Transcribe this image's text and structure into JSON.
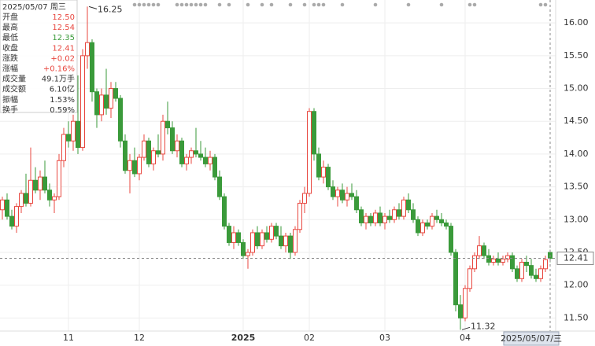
{
  "chart_data": {
    "type": "candlestick",
    "categories": [
      null,
      null,
      null,
      null,
      null,
      null,
      null,
      null,
      null,
      null,
      null,
      null,
      null,
      null,
      "11",
      null,
      null,
      null,
      null,
      null,
      null,
      null,
      null,
      null,
      null,
      null,
      null,
      null,
      null,
      "12",
      null,
      null,
      null,
      null,
      null,
      null,
      null,
      null,
      null,
      null,
      null,
      null,
      null,
      null,
      null,
      null,
      null,
      null,
      null,
      null,
      null,
      "2025",
      null,
      null,
      null,
      null,
      null,
      null,
      null,
      null,
      null,
      null,
      null,
      null,
      null,
      "02",
      null,
      null,
      null,
      null,
      null,
      null,
      null,
      null,
      null,
      null,
      null,
      null,
      null,
      null,
      null,
      "03",
      null,
      null,
      null,
      null,
      null,
      null,
      null,
      null,
      null,
      null,
      null,
      null,
      null,
      null,
      null,
      null,
      "04",
      null,
      null,
      null,
      null,
      null,
      null,
      null,
      null,
      null,
      null,
      null,
      null,
      null,
      null,
      null,
      null,
      null,
      null
    ],
    "ohlc": [
      [
        13.15,
        13.35,
        13.0,
        13.3
      ],
      [
        13.3,
        13.4,
        13.0,
        13.05
      ],
      [
        13.05,
        13.15,
        12.85,
        12.9
      ],
      [
        12.9,
        13.25,
        12.8,
        13.2
      ],
      [
        13.2,
        13.45,
        13.1,
        13.4
      ],
      [
        13.4,
        13.7,
        13.2,
        13.25
      ],
      [
        13.25,
        14.1,
        13.2,
        13.6
      ],
      [
        13.6,
        13.8,
        13.4,
        13.45
      ],
      [
        13.45,
        13.75,
        13.3,
        13.65
      ],
      [
        13.65,
        13.9,
        13.4,
        13.45
      ],
      [
        13.45,
        13.55,
        13.2,
        13.3
      ],
      [
        13.3,
        13.4,
        13.1,
        13.35
      ],
      [
        13.35,
        14.0,
        13.3,
        13.9
      ],
      [
        13.9,
        14.4,
        13.8,
        14.3
      ],
      [
        14.3,
        14.5,
        14.1,
        14.2
      ],
      [
        14.2,
        14.6,
        14.05,
        14.5
      ],
      [
        14.5,
        15.2,
        14.0,
        14.1
      ],
      [
        14.1,
        15.6,
        14.05,
        15.5
      ],
      [
        15.5,
        16.25,
        15.3,
        15.7
      ],
      [
        15.7,
        15.75,
        14.8,
        14.95
      ],
      [
        14.95,
        15.0,
        14.4,
        14.6
      ],
      [
        14.6,
        15.0,
        14.5,
        14.9
      ],
      [
        14.9,
        15.3,
        14.6,
        14.7
      ],
      [
        14.7,
        15.1,
        14.55,
        15.0
      ],
      [
        15.0,
        15.1,
        14.8,
        14.85
      ],
      [
        14.85,
        14.9,
        14.1,
        14.2
      ],
      [
        14.2,
        14.3,
        13.7,
        13.75
      ],
      [
        13.75,
        14.0,
        13.4,
        13.9
      ],
      [
        13.9,
        14.1,
        13.65,
        13.7
      ],
      [
        13.7,
        14.0,
        13.6,
        13.95
      ],
      [
        13.95,
        14.3,
        13.9,
        14.2
      ],
      [
        14.2,
        14.25,
        13.8,
        13.85
      ],
      [
        13.85,
        14.1,
        13.75,
        14.05
      ],
      [
        14.05,
        14.3,
        13.95,
        14.0
      ],
      [
        14.0,
        14.6,
        13.9,
        14.5
      ],
      [
        14.5,
        14.8,
        14.3,
        14.4
      ],
      [
        14.4,
        14.5,
        14.0,
        14.05
      ],
      [
        14.05,
        14.3,
        13.95,
        14.2
      ],
      [
        14.2,
        14.25,
        13.8,
        13.85
      ],
      [
        13.85,
        14.0,
        13.75,
        13.95
      ],
      [
        13.95,
        14.1,
        13.85,
        14.05
      ],
      [
        14.05,
        14.4,
        13.95,
        14.0
      ],
      [
        14.0,
        14.2,
        13.9,
        13.95
      ],
      [
        13.95,
        14.1,
        13.8,
        13.85
      ],
      [
        13.85,
        14.05,
        13.75,
        13.95
      ],
      [
        13.95,
        14.0,
        13.6,
        13.65
      ],
      [
        13.65,
        13.75,
        13.3,
        13.35
      ],
      [
        13.35,
        13.4,
        12.85,
        12.9
      ],
      [
        12.9,
        12.95,
        12.6,
        12.65
      ],
      [
        12.65,
        12.9,
        12.55,
        12.8
      ],
      [
        12.8,
        12.85,
        12.6,
        12.65
      ],
      [
        12.65,
        12.7,
        12.4,
        12.45
      ],
      [
        12.45,
        12.55,
        12.25,
        12.5
      ],
      [
        12.5,
        12.85,
        12.45,
        12.8
      ],
      [
        12.8,
        12.9,
        12.55,
        12.6
      ],
      [
        12.6,
        12.85,
        12.55,
        12.8
      ],
      [
        12.8,
        12.9,
        12.65,
        12.7
      ],
      [
        12.7,
        12.95,
        12.65,
        12.9
      ],
      [
        12.9,
        12.95,
        12.7,
        12.75
      ],
      [
        12.75,
        12.9,
        12.55,
        12.6
      ],
      [
        12.6,
        12.8,
        12.5,
        12.75
      ],
      [
        12.75,
        12.8,
        12.4,
        12.5
      ],
      [
        12.5,
        12.9,
        12.45,
        12.85
      ],
      [
        12.85,
        13.3,
        12.8,
        13.25
      ],
      [
        13.25,
        13.5,
        13.1,
        13.4
      ],
      [
        13.4,
        14.7,
        13.35,
        14.65
      ],
      [
        14.65,
        14.7,
        13.9,
        14.0
      ],
      [
        14.0,
        14.1,
        13.6,
        13.65
      ],
      [
        13.65,
        13.9,
        13.55,
        13.8
      ],
      [
        13.8,
        13.85,
        13.45,
        13.5
      ],
      [
        13.5,
        13.6,
        13.3,
        13.35
      ],
      [
        13.35,
        13.5,
        13.2,
        13.45
      ],
      [
        13.45,
        13.55,
        13.25,
        13.3
      ],
      [
        13.3,
        13.5,
        13.2,
        13.4
      ],
      [
        13.4,
        13.55,
        13.3,
        13.35
      ],
      [
        13.35,
        13.45,
        13.1,
        13.15
      ],
      [
        13.15,
        13.2,
        12.9,
        12.95
      ],
      [
        12.95,
        13.1,
        12.85,
        13.05
      ],
      [
        13.05,
        13.1,
        12.9,
        12.95
      ],
      [
        12.95,
        13.15,
        12.9,
        13.1
      ],
      [
        13.1,
        13.2,
        12.9,
        12.95
      ],
      [
        12.95,
        13.1,
        12.85,
        13.05
      ],
      [
        13.05,
        13.15,
        12.95,
        13.0
      ],
      [
        13.0,
        13.2,
        12.95,
        13.15
      ],
      [
        13.15,
        13.25,
        13.0,
        13.05
      ],
      [
        13.05,
        13.35,
        13.0,
        13.3
      ],
      [
        13.3,
        13.4,
        13.1,
        13.15
      ],
      [
        13.15,
        13.25,
        12.95,
        13.0
      ],
      [
        13.0,
        13.05,
        12.75,
        12.8
      ],
      [
        12.8,
        13.0,
        12.75,
        12.95
      ],
      [
        12.95,
        13.0,
        12.85,
        12.9
      ],
      [
        12.9,
        13.1,
        12.85,
        13.05
      ],
      [
        13.05,
        13.15,
        12.95,
        13.0
      ],
      [
        13.0,
        13.1,
        12.9,
        12.95
      ],
      [
        12.95,
        13.0,
        12.85,
        12.9
      ],
      [
        12.9,
        12.95,
        12.45,
        12.5
      ],
      [
        12.5,
        12.55,
        11.6,
        11.7
      ],
      [
        11.7,
        11.85,
        11.32,
        11.5
      ],
      [
        11.5,
        12.0,
        11.45,
        11.95
      ],
      [
        11.95,
        12.3,
        11.9,
        12.25
      ],
      [
        12.25,
        12.5,
        12.2,
        12.45
      ],
      [
        12.45,
        12.75,
        12.4,
        12.6
      ],
      [
        12.6,
        12.65,
        12.4,
        12.45
      ],
      [
        12.45,
        12.55,
        12.3,
        12.35
      ],
      [
        12.35,
        12.45,
        12.3,
        12.4
      ],
      [
        12.4,
        12.5,
        12.3,
        12.35
      ],
      [
        12.35,
        12.45,
        12.3,
        12.4
      ],
      [
        12.4,
        12.5,
        12.35,
        12.45
      ],
      [
        12.45,
        12.5,
        12.2,
        12.25
      ],
      [
        12.25,
        12.3,
        12.05,
        12.1
      ],
      [
        12.1,
        12.4,
        12.05,
        12.35
      ],
      [
        12.35,
        12.45,
        12.2,
        12.3
      ],
      [
        12.3,
        12.4,
        12.1,
        12.15
      ],
      [
        12.15,
        12.25,
        12.05,
        12.1
      ],
      [
        12.1,
        12.3,
        12.05,
        12.25
      ],
      [
        12.25,
        12.45,
        12.2,
        12.39
      ],
      [
        12.5,
        12.54,
        12.35,
        12.41
      ]
    ],
    "up_color": "#e8473f",
    "down_color": "#3a9a3a",
    "ylim": [
      11.3,
      16.35
    ],
    "yticks": [
      {
        "value": 11.5,
        "label": "11.50"
      },
      {
        "value": 12,
        "label": "12.00"
      },
      {
        "value": 12.5,
        "label": "12.50"
      },
      {
        "value": 13,
        "label": "13.00"
      },
      {
        "value": 13.5,
        "label": "13.50"
      },
      {
        "value": 14,
        "label": "14.00"
      },
      {
        "value": 14.5,
        "label": "14.50"
      },
      {
        "value": 15,
        "label": "15.00"
      },
      {
        "value": 15.5,
        "label": "15.50"
      },
      {
        "value": 16,
        "label": "16.00"
      }
    ],
    "grid": true,
    "annotations": {
      "max": 16.25,
      "min": 11.32
    },
    "crosshair": {
      "date_label": "2025/05/07/三",
      "price": 12.41
    }
  },
  "info_panel": {
    "date": "2025/05/07 周三",
    "rows": [
      {
        "label": "开盘",
        "value": "12.50",
        "color": "#e8473f"
      },
      {
        "label": "最高",
        "value": "12.54",
        "color": "#e8473f"
      },
      {
        "label": "最低",
        "value": "12.35",
        "color": "#3a9a3a"
      },
      {
        "label": "收盘",
        "value": "12.41",
        "color": "#e8473f"
      },
      {
        "label": "涨跌",
        "value": "+0.02",
        "color": "#e8473f"
      },
      {
        "label": "涨幅",
        "value": "+0.16%",
        "color": "#e8473f"
      },
      {
        "label": "成交量",
        "value": "49.1万手",
        "color": "#333333"
      },
      {
        "label": "成交额",
        "value": "6.10亿",
        "color": "#333333"
      },
      {
        "label": "振幅",
        "value": "1.53%",
        "color": "#333333"
      },
      {
        "label": "换手",
        "value": "0.59%",
        "color": "#333333"
      }
    ]
  }
}
